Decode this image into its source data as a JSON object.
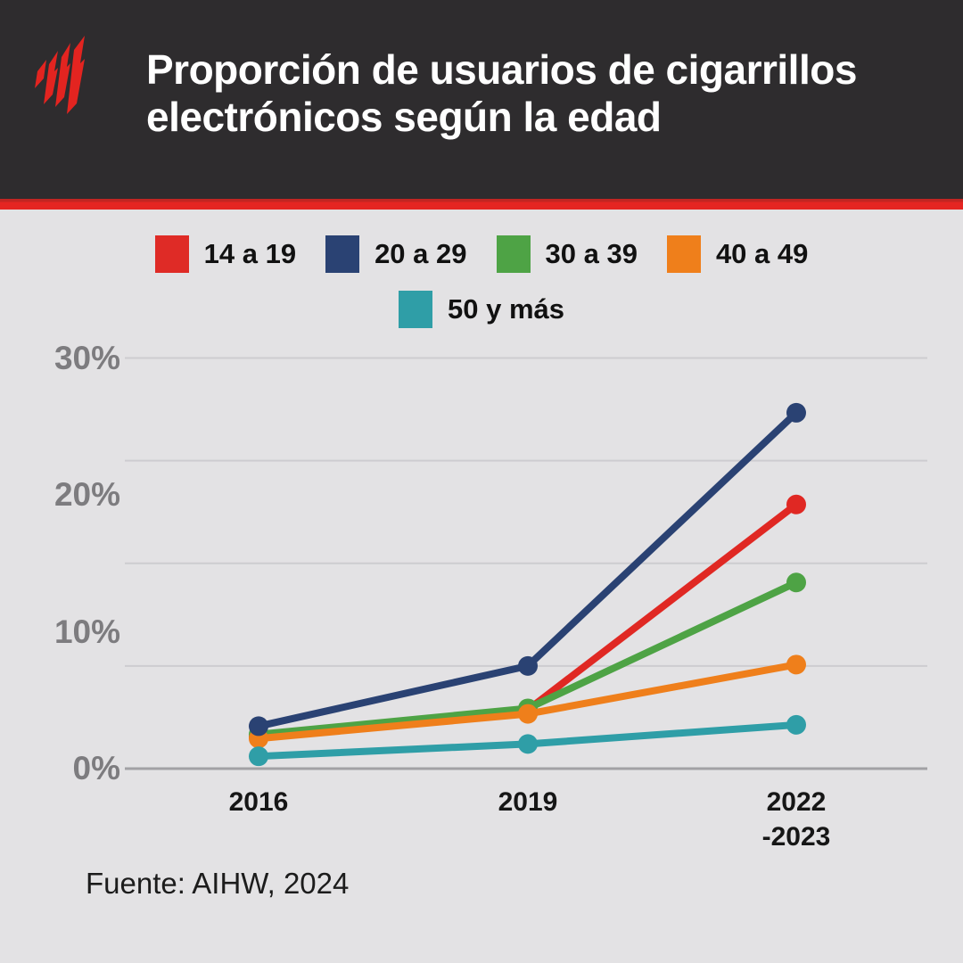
{
  "header": {
    "title_line1": "Proporción de usuarios de cigarrillos",
    "title_line2": "electrónicos según la edad",
    "brand": "SBS",
    "brand_color": "#e32420",
    "bg_color": "#2e2c2e",
    "accent_stripe_color": "#e52522"
  },
  "legend": {
    "rows": [
      [
        {
          "label": "14 a 19",
          "color": "#df2b26"
        },
        {
          "label": "20 a 29",
          "color": "#2a4273"
        },
        {
          "label": "30 a 39",
          "color": "#4ea345"
        },
        {
          "label": "40 a 49",
          "color": "#ef7f1b"
        }
      ],
      [
        {
          "label": "50 y más",
          "color": "#2f9ea7"
        }
      ]
    ]
  },
  "chart_data": {
    "type": "line",
    "title": "Proporción de usuarios de cigarrillos electrónicos según la edad",
    "x_categories": [
      "2016",
      "2019",
      "2022-2023"
    ],
    "x_tick_lines": [
      [
        "2016"
      ],
      [
        "2019"
      ],
      [
        "2022",
        "-2023"
      ]
    ],
    "series": [
      {
        "name": "14 a 19",
        "color": "#e02823",
        "values": [
          2.3,
          4.3,
          19.3
        ]
      },
      {
        "name": "20 a 29",
        "color": "#2a4273",
        "values": [
          3.1,
          7.5,
          26.0
        ]
      },
      {
        "name": "30 a 39",
        "color": "#4ea345",
        "values": [
          2.5,
          4.4,
          13.6
        ]
      },
      {
        "name": "40 a 49",
        "color": "#ef7f1b",
        "values": [
          2.2,
          4.0,
          7.6
        ]
      },
      {
        "name": "50 y más",
        "color": "#2f9ea7",
        "values": [
          0.9,
          1.8,
          3.2
        ]
      }
    ],
    "unit": "%",
    "ylim": [
      0,
      30
    ],
    "y_tick_values": [
      0,
      10,
      20,
      30
    ],
    "y_tick_labels": [
      "0%",
      "10%",
      "20%",
      "30%"
    ],
    "gridline_values": [
      0,
      7.5,
      15,
      22.5,
      30
    ],
    "grid": true,
    "legend_position": "top",
    "gridline_color": "#cdccd0",
    "axis_line_color": "#a2a1a5"
  },
  "footer": {
    "source_label": "Fuente:",
    "source_value": "AIHW, 2024"
  }
}
